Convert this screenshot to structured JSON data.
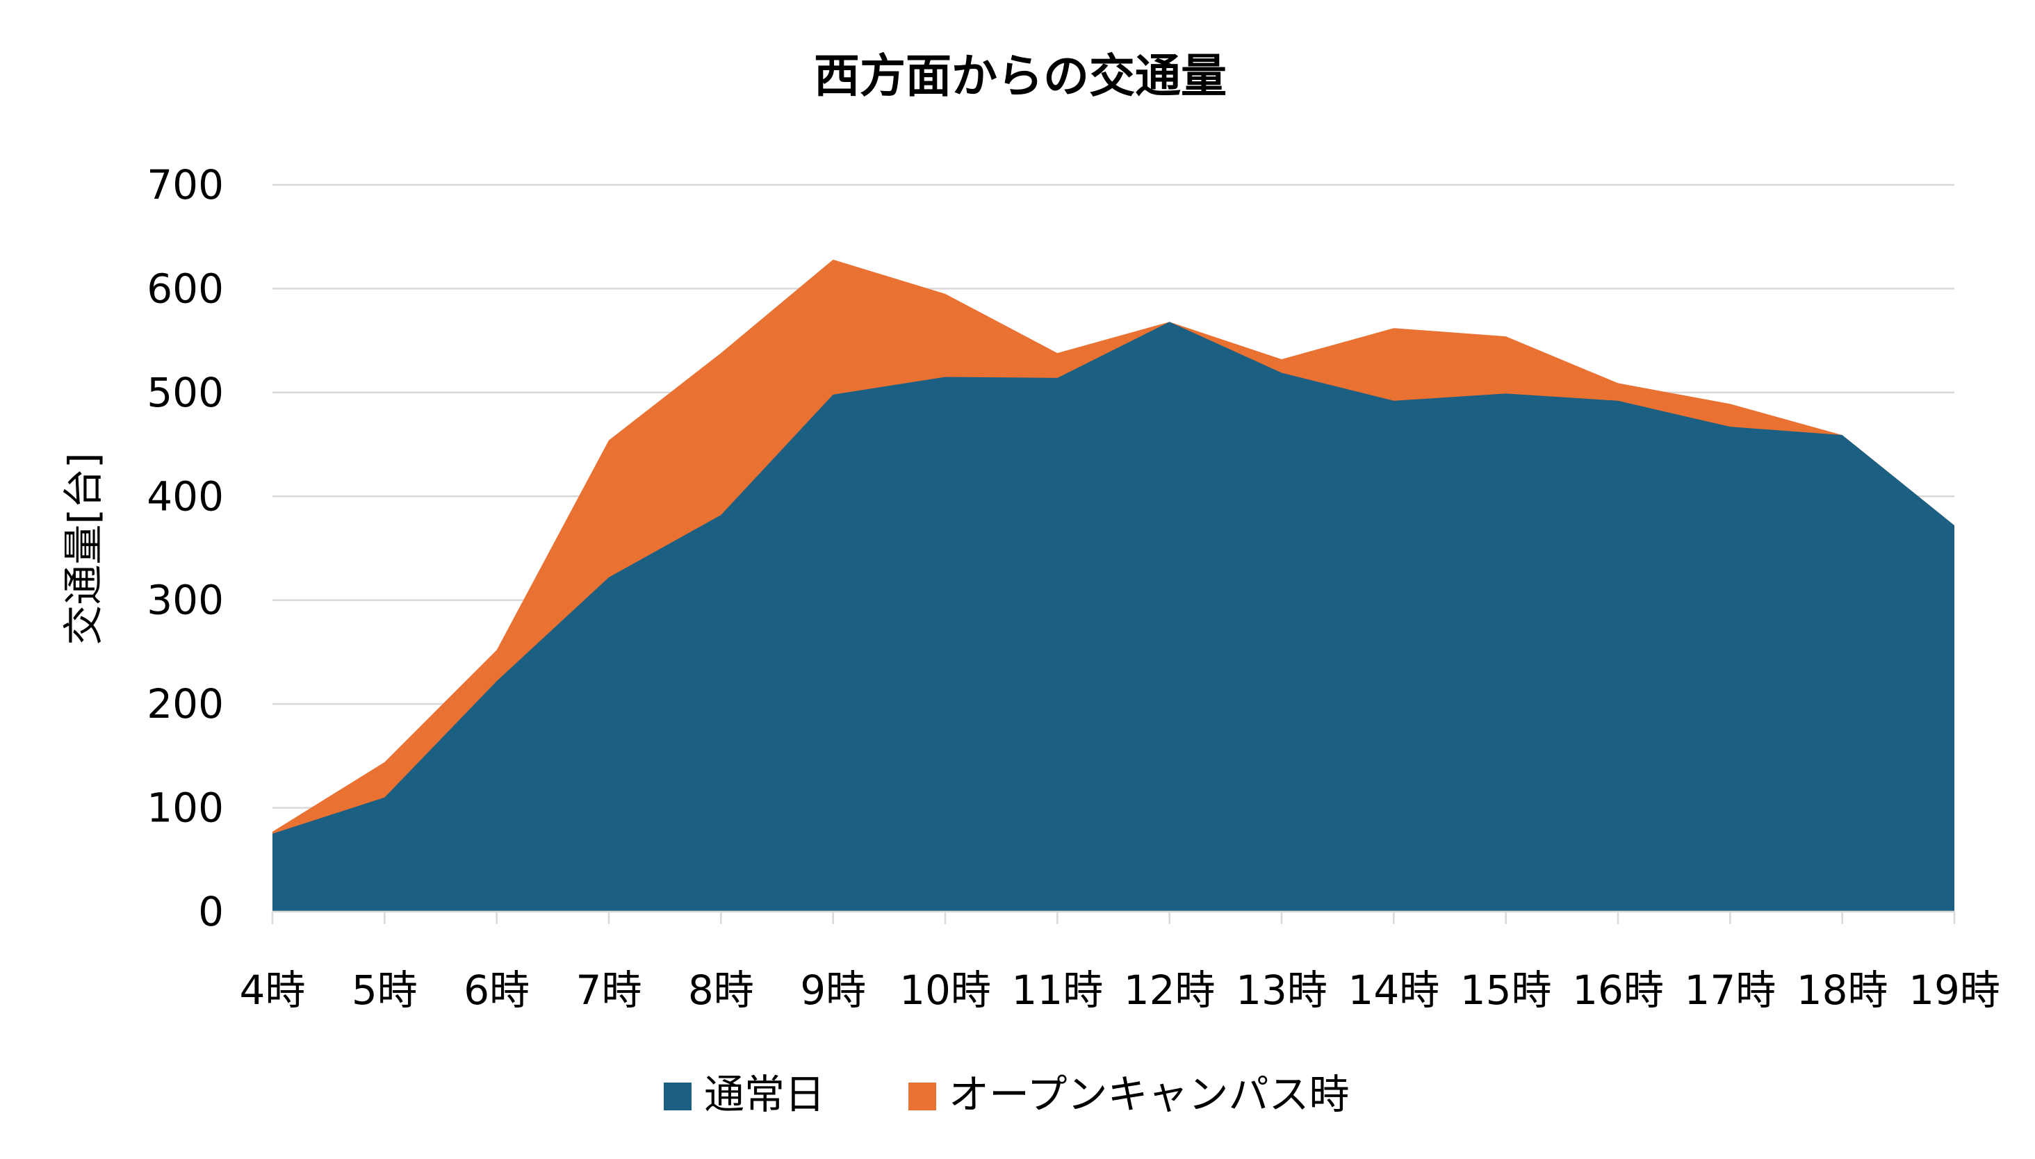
{
  "chart_data": {
    "type": "area",
    "title": "西方面からの交通量",
    "xlabel": "",
    "ylabel": "交通量[台]",
    "categories": [
      "4時",
      "5時",
      "6時",
      "7時",
      "8時",
      "9時",
      "10時",
      "11時",
      "12時",
      "13時",
      "14時",
      "15時",
      "16時",
      "17時",
      "18時",
      "19時"
    ],
    "ylim": [
      0,
      700
    ],
    "yticks": [
      0,
      100,
      200,
      300,
      400,
      500,
      600,
      700
    ],
    "grid": true,
    "legend_position": "bottom",
    "series": [
      {
        "name": "通常日",
        "color": "#1b6083",
        "values": [
          75,
          110,
          222,
          322,
          382,
          498,
          515,
          514,
          568,
          519,
          492,
          499,
          492,
          467,
          459,
          372
        ]
      },
      {
        "name": "オープンキャンパス時",
        "color": "#e97132",
        "values": [
          77,
          144,
          252,
          454,
          538,
          628,
          595,
          538,
          568,
          532,
          562,
          554,
          509,
          489,
          459,
          372
        ]
      }
    ]
  }
}
